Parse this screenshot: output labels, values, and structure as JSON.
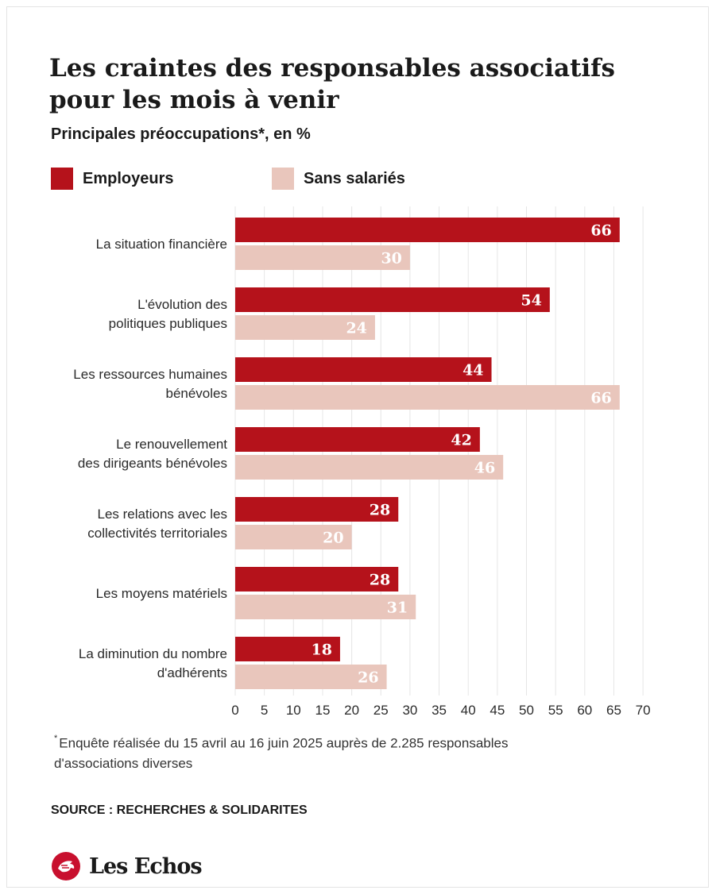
{
  "title": "Les craintes des responsables associatifs pour les mois à venir",
  "subtitle": "Principales préoccupations*, en %",
  "colors": {
    "employeurs": "#b5121b",
    "sans_salaries": "#e9c6bc",
    "grid": "#e6e6e6",
    "text": "#1a1a1a"
  },
  "legend": [
    {
      "label": "Employeurs",
      "color": "#b5121b"
    },
    {
      "label": "Sans salariés",
      "color": "#e9c6bc"
    }
  ],
  "chart_data": {
    "type": "bar",
    "orientation": "horizontal",
    "title": "Les craintes des responsables associatifs pour les mois à venir",
    "subtitle": "Principales préoccupations*, en %",
    "categories": [
      [
        "La situation financière"
      ],
      [
        "L'évolution des",
        "politiques publiques"
      ],
      [
        "Les ressources humaines",
        "bénévoles"
      ],
      [
        "Le renouvellement",
        "des dirigeants bénévoles"
      ],
      [
        "Les relations avec les",
        "collectivités territoriales"
      ],
      [
        "Les moyens matériels"
      ],
      [
        "La diminution du nombre",
        "d'adhérents"
      ]
    ],
    "series": [
      {
        "name": "Employeurs",
        "color": "#b5121b",
        "values": [
          66,
          54,
          44,
          42,
          28,
          28,
          18
        ]
      },
      {
        "name": "Sans salariés",
        "color": "#e9c6bc",
        "values": [
          30,
          24,
          66,
          46,
          20,
          31,
          26
        ]
      }
    ],
    "xlim": [
      0,
      70
    ],
    "xticks": [
      0,
      5,
      10,
      15,
      20,
      25,
      30,
      35,
      40,
      45,
      50,
      55,
      60,
      65,
      70
    ],
    "grid": true,
    "legend_position": "top-left"
  },
  "footnote": {
    "marker": "*",
    "text": "Enquête réalisée du 15 avril au 16 juin 2025 auprès de 2.285 responsables d'associations diverses"
  },
  "source": "SOURCE : RECHERCHES & SOLIDARITES",
  "brand": {
    "name": "Les Echos",
    "logo_icon": "les-echos-rooster-logo-icon"
  }
}
